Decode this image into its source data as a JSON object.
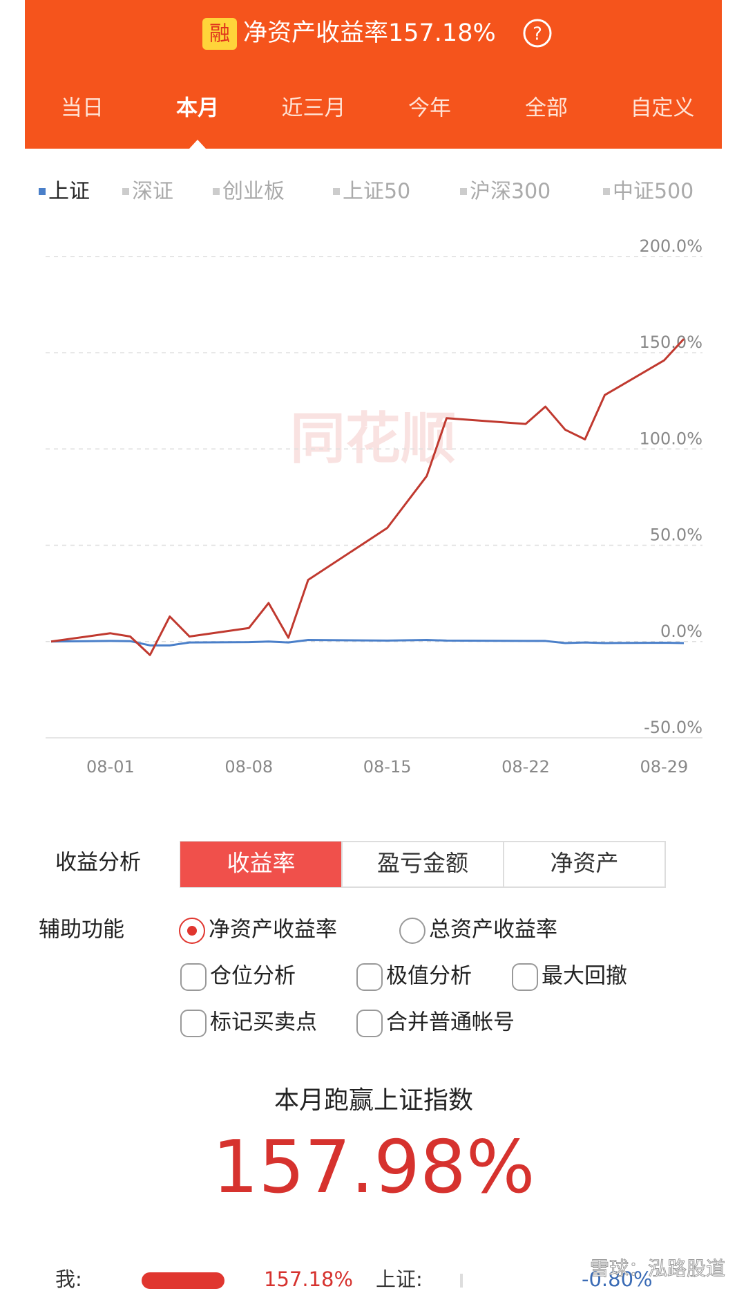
{
  "header": {
    "badge": "融",
    "title": "净资产收益率157.18%",
    "help": "?"
  },
  "tabs": [
    "当日",
    "本月",
    "近三月",
    "今年",
    "全部",
    "自定义"
  ],
  "index_tabs": [
    "上证",
    "深证",
    "创业板",
    "上证50",
    "沪深300",
    "中证500"
  ],
  "watermark": "同花顺",
  "chart_data": {
    "type": "line",
    "x": [
      "07-29",
      "08-01",
      "08-02",
      "08-03",
      "08-04",
      "08-05",
      "08-08",
      "08-09",
      "08-10",
      "08-11",
      "08-15",
      "08-17",
      "08-18",
      "08-22",
      "08-23",
      "08-24",
      "08-25",
      "08-26",
      "08-29",
      "08-30"
    ],
    "series": [
      {
        "color": "#c0392f",
        "values": [
          0,
          4.3,
          2.6,
          -7,
          13,
          2.6,
          7,
          20,
          2,
          32,
          59,
          86,
          116,
          113,
          122,
          110,
          105,
          128,
          146,
          157.18
        ]
      },
      {
        "color": "#4a7fc9",
        "values": [
          0,
          0.3,
          0.2,
          -2,
          -2,
          -0.5,
          -0.3,
          0,
          -0.5,
          0.8,
          0.5,
          0.8,
          0.5,
          0.3,
          0.3,
          -0.8,
          -0.5,
          -0.8,
          -0.6,
          -0.8
        ]
      }
    ],
    "xlim": [
      "07-29",
      "08-30"
    ],
    "xticks": [
      "08-01",
      "08-08",
      "08-15",
      "08-22",
      "08-29"
    ],
    "ylim": [
      -50,
      210
    ],
    "yticks": [
      {
        "value": 200,
        "label": "200.0%"
      },
      {
        "value": 150,
        "label": "150.0%"
      },
      {
        "value": 100,
        "label": "100.0%"
      },
      {
        "value": 50,
        "label": "50.0%"
      },
      {
        "value": 0,
        "label": "0.0%"
      },
      {
        "value": -50,
        "label": "-50.0%"
      }
    ],
    "grid": true
  },
  "analysis": {
    "label": "收益分析",
    "options": [
      "收益率",
      "盈亏金额",
      "净资产"
    ]
  },
  "aux": {
    "label": "辅助功能",
    "options": [
      "净资产收益率",
      "总资产收益率",
      "仓位分析",
      "极值分析",
      "最大回撤",
      "标记买卖点",
      "合并普通帐号"
    ]
  },
  "summary": {
    "title": "本月跑赢上证指数",
    "value": "157.98%"
  },
  "comparison": {
    "me_label": "我:",
    "me_value": "157.18%",
    "index_label": "上证:",
    "index_value": "-0.80%"
  },
  "footer_watermark": "雪球：泓路股道"
}
